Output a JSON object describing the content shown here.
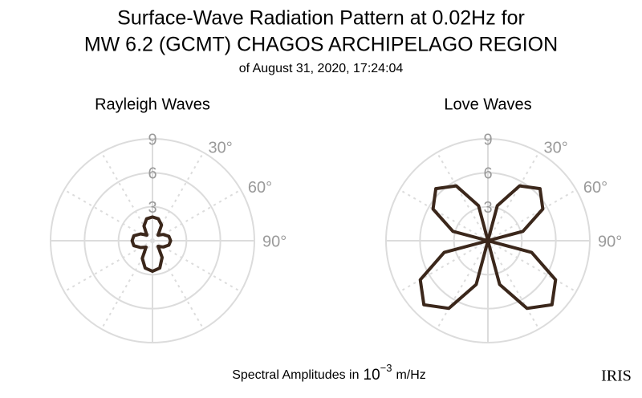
{
  "title": [
    "Surface-Wave Radiation Pattern at 0.02Hz for",
    "MW 6.2 (GCMT) CHAGOS ARCHIPELAGO REGION"
  ],
  "subtitle": "of August 31, 2020, 17:24:04",
  "footer": {
    "text": "Spectral Amplitudes in",
    "base": "10",
    "exponent": "−3",
    "unit": "m/Hz"
  },
  "logo": "IRIS",
  "chart_data": [
    {
      "type": "polar",
      "title": "Rayleigh Waves",
      "color": "#3b271b",
      "theta": [
        0,
        15,
        30,
        45,
        60,
        75,
        90,
        105,
        120,
        135,
        150,
        165,
        180,
        195,
        210,
        225,
        240,
        255,
        270,
        285,
        300,
        315,
        330,
        345
      ],
      "values": [
        2.1,
        2.0,
        1.6,
        0.7,
        1.1,
        1.5,
        1.6,
        1.5,
        1.1,
        0.7,
        1.7,
        2.5,
        2.7,
        2.5,
        1.8,
        0.8,
        1.2,
        1.7,
        1.8,
        1.7,
        1.2,
        0.7,
        1.5,
        2.0
      ],
      "rlim": [
        0,
        9
      ],
      "rticks": [
        3,
        6,
        9
      ],
      "thetagrid": [
        0,
        30,
        60,
        90,
        120,
        150,
        180,
        210,
        240,
        270,
        300,
        330
      ],
      "thetaticks": [
        {
          "value": 30,
          "label": "30°"
        },
        {
          "value": 60,
          "label": "60°"
        },
        {
          "value": 90,
          "label": "90°"
        }
      ]
    },
    {
      "type": "polar",
      "title": "Love Waves",
      "color": "#3b271b",
      "theta": [
        0,
        15,
        30,
        45,
        60,
        75,
        90,
        105,
        120,
        135,
        150,
        165,
        180,
        195,
        210,
        225,
        240,
        255,
        270,
        285,
        300,
        315,
        330,
        345
      ],
      "values": [
        0,
        3.2,
        5.6,
        6.5,
        5.6,
        3.2,
        0,
        4.0,
        6.9,
        8.0,
        6.9,
        4.0,
        0,
        4.0,
        6.9,
        8.0,
        6.9,
        4.0,
        0,
        3.2,
        5.6,
        6.5,
        5.6,
        3.2
      ],
      "rlim": [
        0,
        9
      ],
      "rticks": [
        3,
        6,
        9
      ],
      "thetagrid": [
        0,
        30,
        60,
        90,
        120,
        150,
        180,
        210,
        240,
        270,
        300,
        330
      ],
      "thetaticks": [
        {
          "value": 30,
          "label": "30°"
        },
        {
          "value": 60,
          "label": "60°"
        },
        {
          "value": 90,
          "label": "90°"
        }
      ]
    }
  ]
}
